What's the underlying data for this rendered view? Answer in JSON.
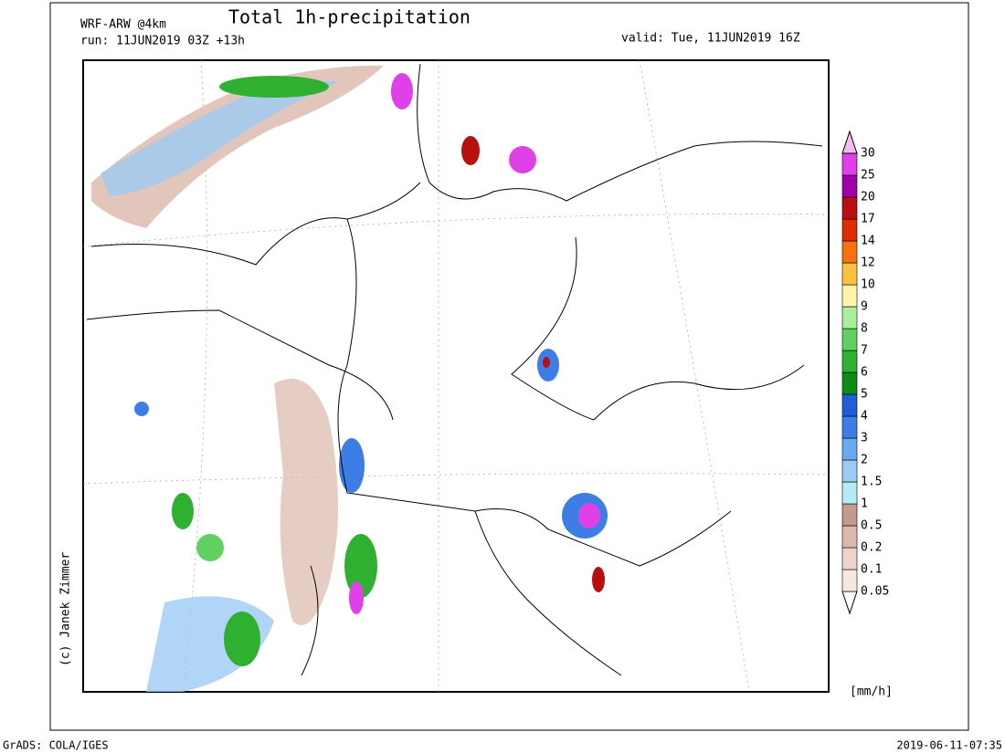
{
  "header": {
    "model": "WRF-ARW @4km",
    "title": "Total 1h-precipitation",
    "run": "run: 11JUN2019 03Z +13h",
    "valid": "valid: Tue, 11JUN2019 16Z"
  },
  "legend": {
    "levels": [
      0.05,
      0.1,
      0.2,
      0.5,
      1,
      1.5,
      2,
      3,
      4,
      5,
      6,
      7,
      8,
      9,
      10,
      12,
      14,
      17,
      20,
      25,
      30
    ],
    "colors": [
      "#ffffff",
      "#f6e8df",
      "#ecd4ca",
      "#dcb8aa",
      "#c49a8c",
      "#b4ecf4",
      "#9ccaf4",
      "#6aa8f0",
      "#3c7ee6",
      "#1f5fd6",
      "#0e8a18",
      "#30b030",
      "#60d060",
      "#a8f0a0",
      "#fff4a8",
      "#fcc040",
      "#f87010",
      "#e02a00",
      "#b81010",
      "#a000a8",
      "#e040e8",
      "#f6b8f0",
      "#ffffff"
    ],
    "unit": "[mm/h]"
  },
  "credit": "(c) Janek Zimmer",
  "footer": {
    "left": "GrADS: COLA/IGES",
    "right": "2019-06-11-07:35"
  }
}
